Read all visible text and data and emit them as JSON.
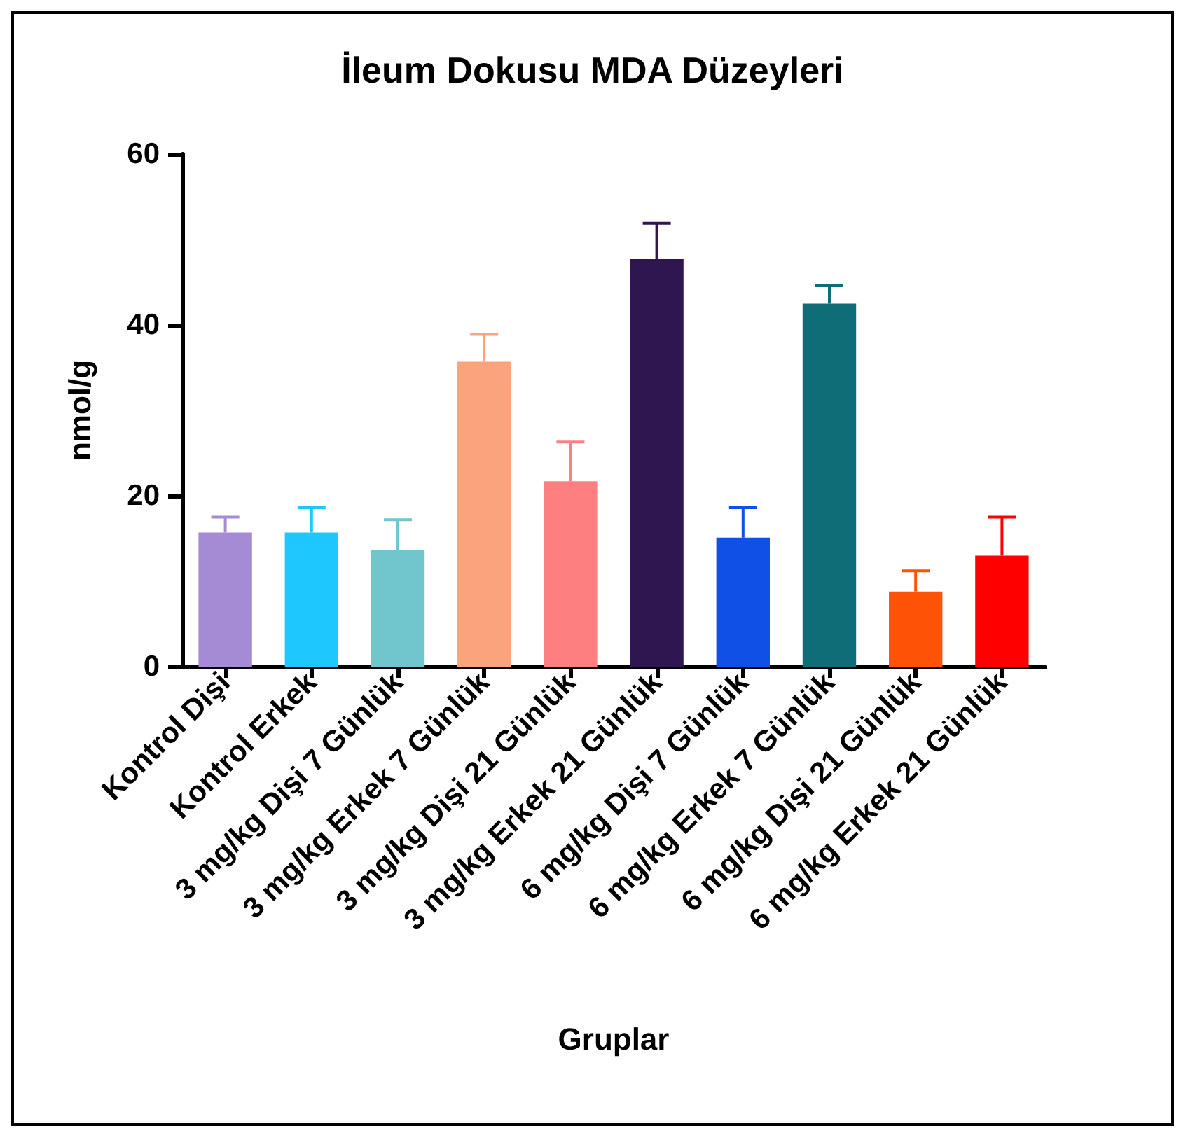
{
  "chart_data": {
    "type": "bar",
    "title": "İleum Dokusu MDA Düzeyleri",
    "xlabel": "Gruplar",
    "ylabel": "nmol/g",
    "categories": [
      "Kontrol Dişi",
      "Kontrol Erkek",
      "3 mg/kg Dişi 7 Günlük",
      "3 mg/kg Erkek 7 Günlük",
      "3 mg/kg Dişi 21 Günlük",
      "3 mg/kg Erkek 21 Günlük",
      "6 mg/kg Dişi 7 Günlük",
      "6 mg/kg Erkek 7 Günlük",
      "6 mg/kg Dişi 21 Günlük",
      "6 mg/kg Erkek 21 Günlük"
    ],
    "values": [
      15.7,
      15.7,
      13.6,
      35.7,
      21.7,
      47.7,
      15.1,
      42.5,
      8.8,
      13.0
    ],
    "colors": [
      "#a58bd3",
      "#1ec8fe",
      "#70c6cc",
      "#fba37c",
      "#fe7f7f",
      "#2f1650",
      "#1150e6",
      "#0f6d78",
      "#fe5206",
      "#fe0000"
    ],
    "errors": [
      [
        15.7,
        17.5
      ],
      [
        15.7,
        18.6
      ],
      [
        13.6,
        17.2
      ],
      [
        35.7,
        38.9
      ],
      [
        21.7,
        26.3
      ],
      [
        47.7,
        51.9
      ],
      [
        15.1,
        18.6
      ],
      [
        42.5,
        44.6
      ],
      [
        8.8,
        11.2
      ],
      [
        13.0,
        17.5
      ]
    ],
    "ylim": [
      0,
      60
    ],
    "yticks": [
      0,
      20,
      40,
      60
    ],
    "grid": false
  }
}
